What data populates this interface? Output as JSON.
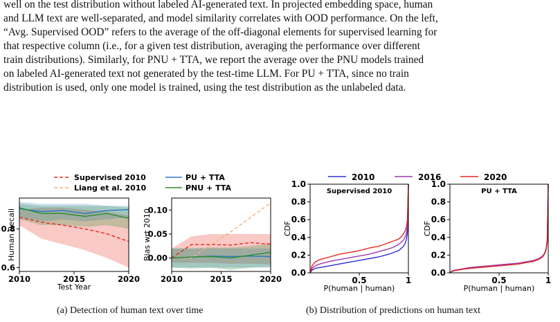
{
  "paragraph": {
    "lines": [
      "well on the test distribution without labeled AI-generated text. In projected embedding space, human",
      "and LLM text are well-separated, and model similarity correlates with OOD performance. On the left,",
      "“Avg. Supervised OOD” refers to the average of the off-diagonal elements for supervised learning for",
      "that respective column (i.e., for a given test distribution, averaging the performance over different",
      "train distributions). Similarly, for PNU + TTA, we report the average over the PNU models trained",
      "on labeled AI-generated text not generated by the test-time LLM. For PU + TTA, since no train",
      "distribution is used, only one model is trained, using the test distribution as the unlabeled data."
    ]
  },
  "captions": {
    "a": "(a) Detection of human text over time",
    "b": "(b) Distribution of predictions on human text"
  },
  "legend_a": [
    {
      "label": "Supervised 2010",
      "color": "#e8271c",
      "dash": true
    },
    {
      "label": "Liang et al. 2010",
      "color": "#f0b27c",
      "dash": true
    },
    {
      "label": "PU + TTA",
      "color": "#2f78c4",
      "dash": false
    },
    {
      "label": "PNU + TTA",
      "color": "#27912f",
      "dash": false
    }
  ],
  "legend_b": [
    {
      "label": "2010",
      "color": "#2d2ddb"
    },
    {
      "label": "2016",
      "color": "#9b3ab4"
    },
    {
      "label": "2020",
      "color": "#e8271c"
    }
  ],
  "chart_data": [
    {
      "type": "line",
      "name": "recall",
      "xlabel": "Test Year",
      "ylabel": "Human Recall",
      "xlim": [
        2010,
        2020
      ],
      "ylim": [
        0.58,
        0.96
      ],
      "xticks": [
        2010,
        2015,
        2020
      ],
      "yticks": [
        0.6,
        0.8
      ],
      "x": [
        2010,
        2012,
        2014,
        2016,
        2018,
        2020
      ],
      "series": [
        {
          "name": "Supervised 2010",
          "color": "#e8271c",
          "dash": true,
          "values": [
            0.86,
            0.835,
            0.82,
            0.8,
            0.775,
            0.735
          ],
          "lower": [
            0.82,
            0.75,
            0.72,
            0.69,
            0.65,
            0.6
          ],
          "upper": [
            0.9,
            0.91,
            0.91,
            0.9,
            0.89,
            0.87
          ]
        },
        {
          "name": "PU + TTA",
          "color": "#2f78c4",
          "dash": false,
          "values": [
            0.905,
            0.89,
            0.895,
            0.88,
            0.895,
            0.9
          ],
          "lower": [
            0.86,
            0.84,
            0.85,
            0.84,
            0.85,
            0.86
          ],
          "upper": [
            0.94,
            0.93,
            0.93,
            0.93,
            0.92,
            0.92
          ]
        },
        {
          "name": "PNU + TTA",
          "color": "#27912f",
          "dash": false,
          "values": [
            0.91,
            0.88,
            0.88,
            0.865,
            0.88,
            0.855
          ],
          "lower": [
            0.85,
            0.82,
            0.82,
            0.81,
            0.82,
            0.8
          ],
          "upper": [
            0.93,
            0.92,
            0.92,
            0.92,
            0.92,
            0.91
          ]
        }
      ]
    },
    {
      "type": "line",
      "name": "bias",
      "xlabel": "",
      "ylabel": "Bias wrt 2010",
      "xlim": [
        2010,
        2020
      ],
      "ylim": [
        -0.028,
        0.125
      ],
      "xticks": [
        2010,
        2015,
        2020
      ],
      "yticks": [
        0.0,
        0.05,
        0.1
      ],
      "ytick_labels": [
        "0.00",
        "0.05",
        "0.10"
      ],
      "x": [
        2010,
        2012,
        2014,
        2016,
        2018,
        2020
      ],
      "series": [
        {
          "name": "Supervised 2010",
          "color": "#e8271c",
          "dash": true,
          "values": [
            0.0,
            0.028,
            0.028,
            0.027,
            0.032,
            0.029
          ],
          "lower": [
            -0.01,
            -0.01,
            -0.01,
            -0.012,
            -0.012,
            -0.013
          ],
          "upper": [
            0.02,
            0.045,
            0.05,
            0.05,
            0.05,
            0.05
          ]
        },
        {
          "name": "Liang et al. 2010",
          "color": "#f0b27c",
          "dash": true,
          "values": [
            0.0,
            0.0,
            0.028,
            0.055,
            0.085,
            0.115
          ]
        },
        {
          "name": "PU + TTA",
          "color": "#2f78c4",
          "dash": false,
          "values": [
            0.0,
            0.002,
            0.004,
            0.003,
            0.004,
            0.003
          ],
          "lower": [
            -0.02,
            -0.02,
            -0.02,
            -0.02,
            -0.02,
            -0.02
          ],
          "upper": [
            0.02,
            0.02,
            0.02,
            0.02,
            0.02,
            0.02
          ]
        },
        {
          "name": "PNU + TTA",
          "color": "#27912f",
          "dash": false,
          "values": [
            0.0,
            0.002,
            0.003,
            0.0,
            0.006,
            0.012
          ],
          "lower": [
            -0.02,
            -0.022,
            -0.02,
            -0.025,
            -0.02,
            -0.018
          ],
          "upper": [
            0.02,
            0.02,
            0.022,
            0.022,
            0.025,
            0.03
          ]
        }
      ]
    },
    {
      "type": "line",
      "name": "cdf_supervised",
      "title": "Supervised 2010",
      "xlabel": "P(human | human)",
      "ylabel": "CDF",
      "xlim": [
        0,
        1
      ],
      "ylim": [
        0,
        1
      ],
      "xticks": [
        0.5,
        1
      ],
      "xtick_labels": [
        "0.5",
        "1"
      ],
      "yticks": [
        0.0,
        0.2,
        0.4,
        0.6,
        0.8,
        1.0
      ],
      "ytick_labels": [
        "0.0",
        "0.2",
        "0.4",
        "0.6",
        "0.8",
        "1.0"
      ],
      "x": [
        0.0,
        0.02,
        0.05,
        0.1,
        0.2,
        0.3,
        0.4,
        0.5,
        0.6,
        0.7,
        0.8,
        0.85,
        0.9,
        0.93,
        0.95,
        0.97,
        0.98,
        0.99,
        1.0
      ],
      "series": [
        {
          "name": "2010",
          "color": "#2d2ddb",
          "values": [
            0.0,
            0.03,
            0.05,
            0.06,
            0.08,
            0.1,
            0.12,
            0.14,
            0.16,
            0.18,
            0.21,
            0.23,
            0.25,
            0.28,
            0.3,
            0.34,
            0.38,
            0.46,
            1.0
          ]
        },
        {
          "name": "2016",
          "color": "#9b3ab4",
          "values": [
            0.0,
            0.05,
            0.08,
            0.1,
            0.13,
            0.15,
            0.17,
            0.19,
            0.21,
            0.24,
            0.27,
            0.29,
            0.32,
            0.35,
            0.37,
            0.41,
            0.45,
            0.53,
            1.0
          ]
        },
        {
          "name": "2020",
          "color": "#e8271c",
          "values": [
            0.0,
            0.08,
            0.12,
            0.15,
            0.18,
            0.21,
            0.23,
            0.25,
            0.28,
            0.3,
            0.34,
            0.36,
            0.38,
            0.41,
            0.44,
            0.48,
            0.52,
            0.6,
            1.0
          ]
        }
      ]
    },
    {
      "type": "line",
      "name": "cdf_pu",
      "title": "PU + TTA",
      "xlabel": "P(human | human)",
      "ylabel": "CDF",
      "xlim": [
        0,
        1
      ],
      "ylim": [
        0,
        1
      ],
      "xticks": [
        0.5,
        1
      ],
      "xtick_labels": [
        "0.5",
        "1"
      ],
      "yticks": [
        0.0,
        0.2,
        0.4,
        0.6,
        0.8,
        1.0
      ],
      "ytick_labels": [
        "0.0",
        "0.2",
        "0.4",
        "0.6",
        "0.8",
        "1.0"
      ],
      "x": [
        0.0,
        0.02,
        0.05,
        0.1,
        0.2,
        0.3,
        0.4,
        0.5,
        0.6,
        0.7,
        0.8,
        0.85,
        0.9,
        0.93,
        0.95,
        0.97,
        0.98,
        0.99,
        1.0
      ],
      "series": [
        {
          "name": "2010",
          "color": "#2d2ddb",
          "values": [
            0.0,
            0.02,
            0.03,
            0.04,
            0.05,
            0.06,
            0.07,
            0.08,
            0.09,
            0.1,
            0.12,
            0.13,
            0.15,
            0.17,
            0.19,
            0.23,
            0.27,
            0.35,
            1.0
          ]
        },
        {
          "name": "2016",
          "color": "#9b3ab4",
          "values": [
            0.0,
            0.02,
            0.03,
            0.04,
            0.06,
            0.07,
            0.08,
            0.09,
            0.1,
            0.11,
            0.13,
            0.14,
            0.16,
            0.18,
            0.2,
            0.24,
            0.29,
            0.38,
            1.0
          ]
        },
        {
          "name": "2020",
          "color": "#e8271c",
          "values": [
            0.0,
            0.015,
            0.025,
            0.035,
            0.05,
            0.06,
            0.07,
            0.08,
            0.09,
            0.1,
            0.12,
            0.13,
            0.15,
            0.17,
            0.19,
            0.23,
            0.28,
            0.37,
            1.0
          ]
        }
      ]
    }
  ]
}
